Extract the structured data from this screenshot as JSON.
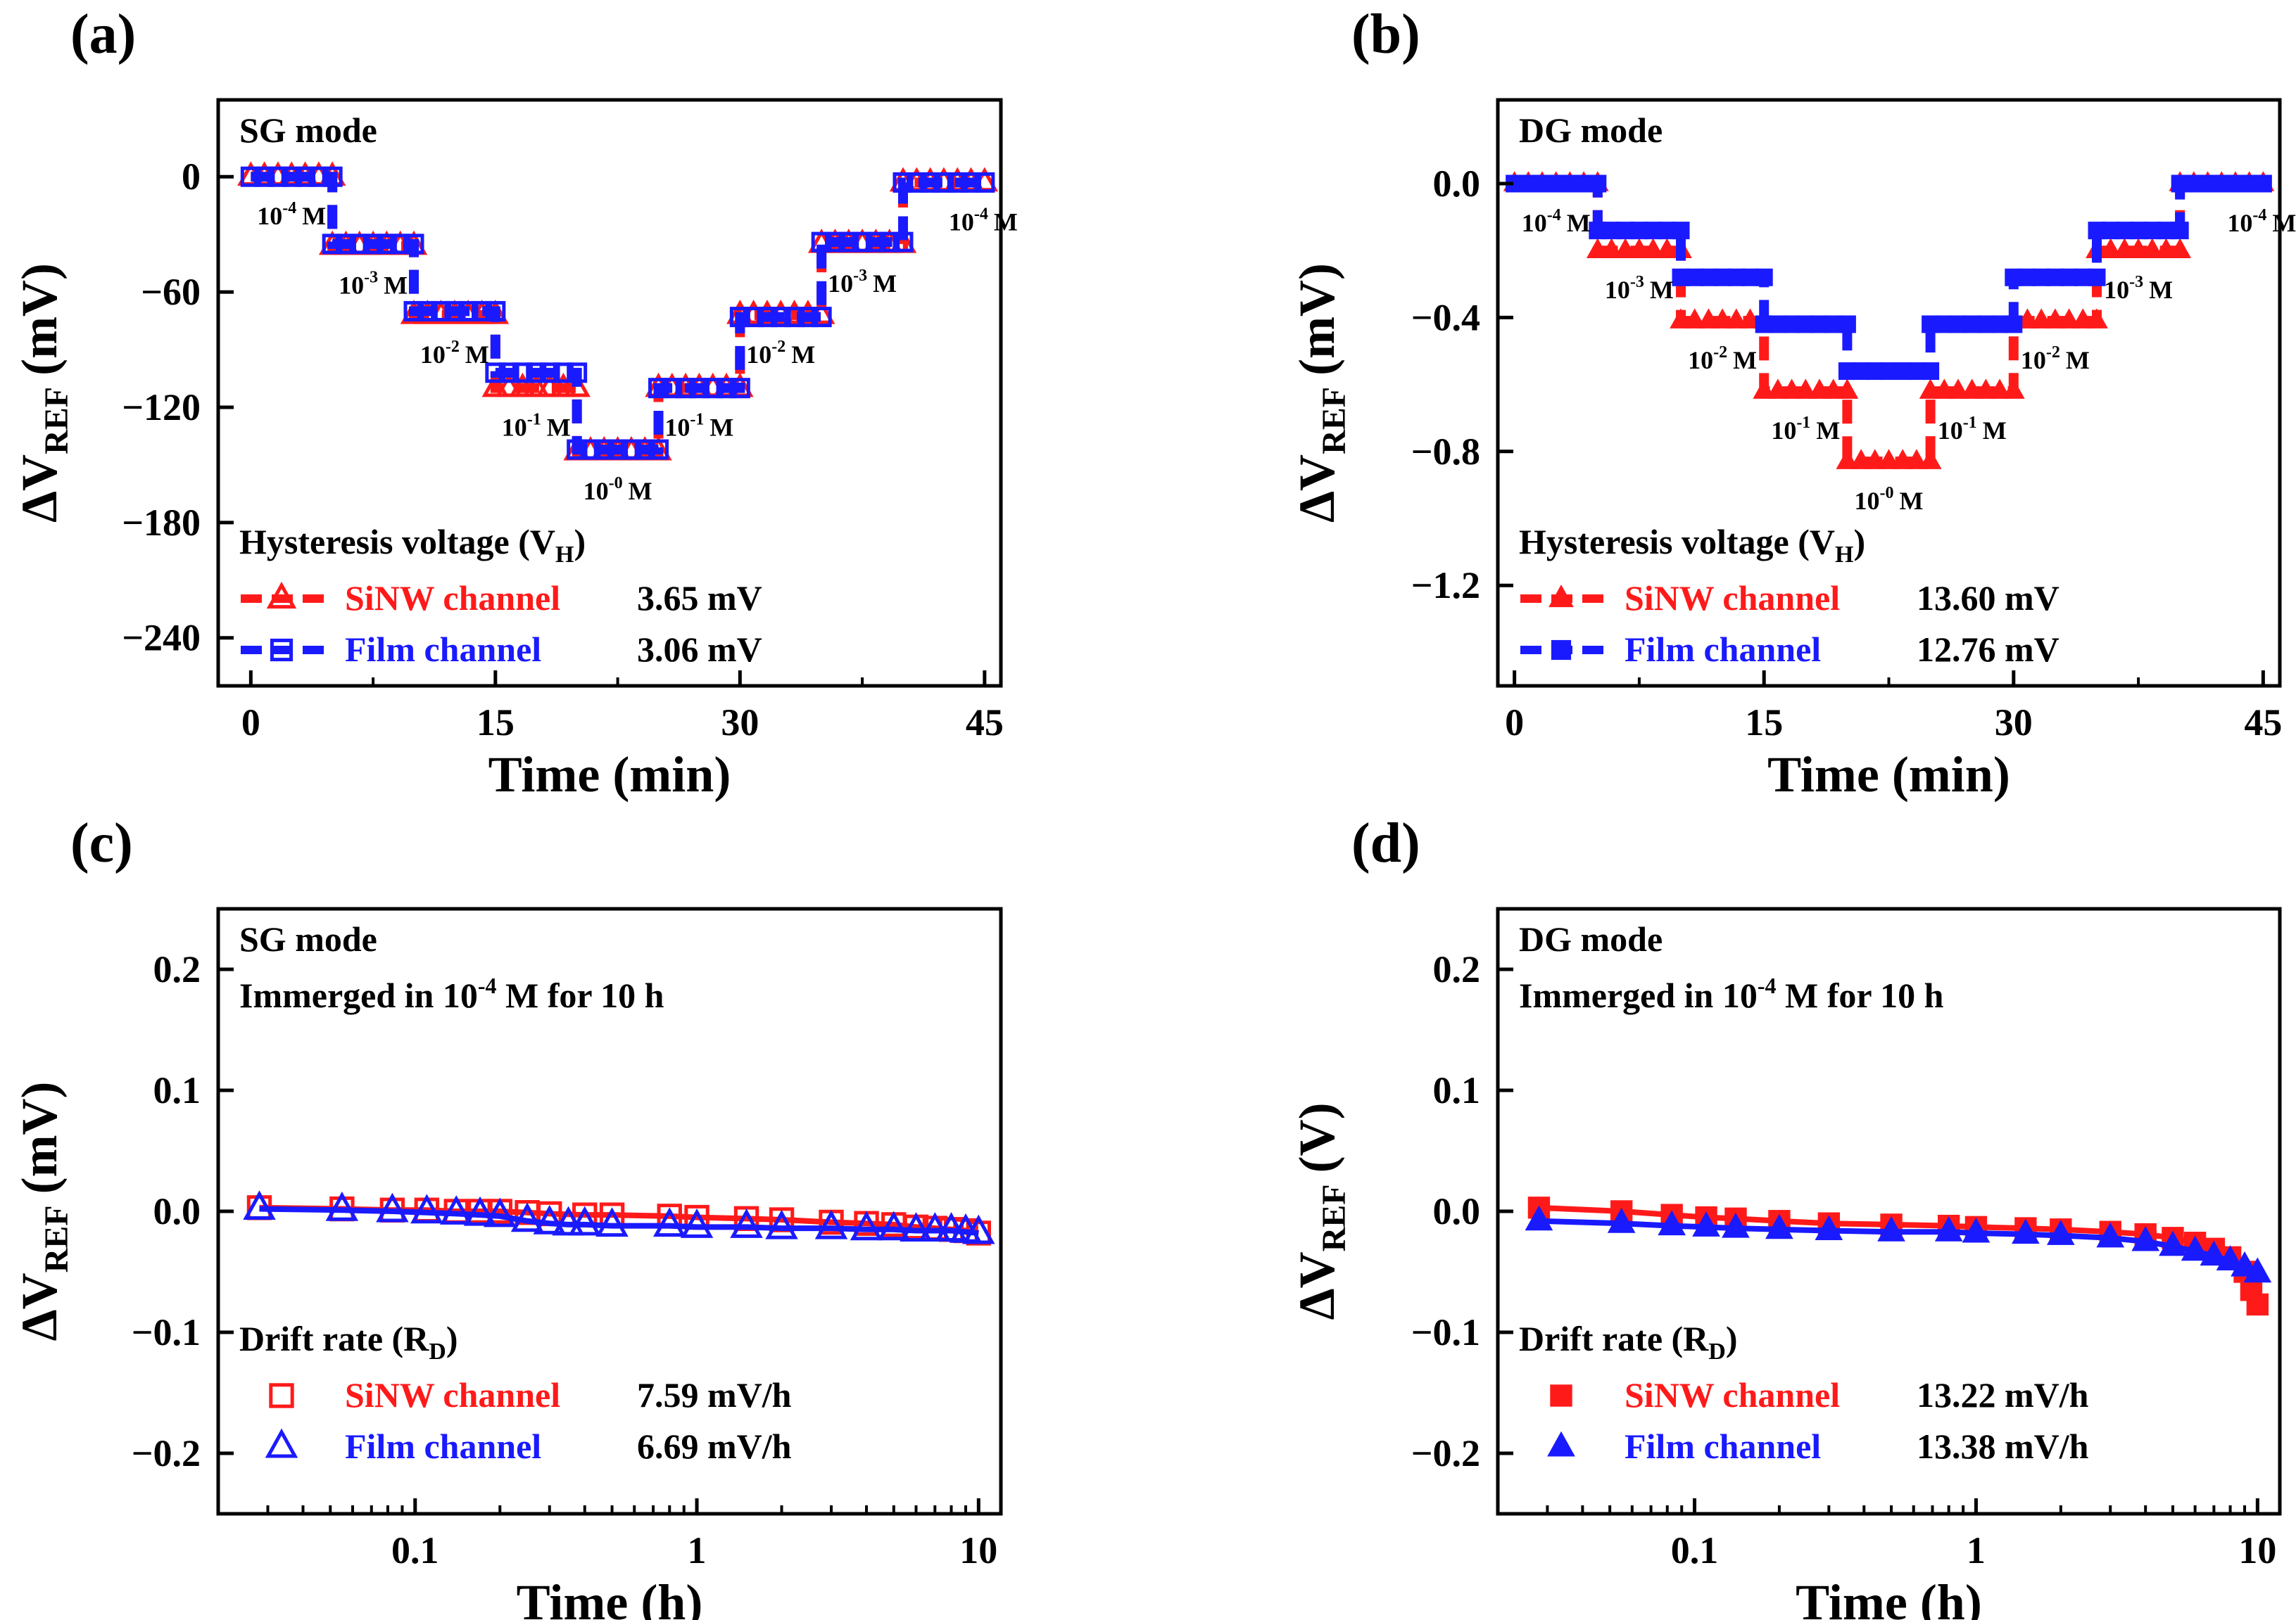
{
  "colors": {
    "red": "#ff1a1a",
    "blue": "#1a1aff",
    "axis": "#000000"
  },
  "panels": [
    {
      "letter": "(a)",
      "mode_label": "SG mode",
      "info_text": "",
      "legend_title": "Hysteresis voltage (V",
      "legend_title_sub": "H",
      "legend": [
        {
          "name": "SiNW channel",
          "value": "3.65 mV",
          "marker": "tri-open",
          "color": "red",
          "line": true
        },
        {
          "name": "Film channel",
          "value": "3.06 mV",
          "marker": "sq-open",
          "color": "blue",
          "line": true
        }
      ],
      "ylabel_unit": "(mV)",
      "xlabel": "Time (min)",
      "xticks": [
        "0",
        "15",
        "30",
        "45"
      ],
      "yticks": [
        "0",
        "−60",
        "−120",
        "−180",
        "−240"
      ],
      "conc_labels": [
        {
          "base": "10",
          "exp": "-4",
          "unit": "M"
        },
        {
          "base": "10",
          "exp": "-3",
          "unit": "M"
        },
        {
          "base": "10",
          "exp": "-2",
          "unit": "M"
        },
        {
          "base": "10",
          "exp": "-1",
          "unit": "M"
        },
        {
          "base": "10",
          "exp": "-0",
          "unit": "M"
        },
        {
          "base": "10",
          "exp": "-1",
          "unit": "M"
        },
        {
          "base": "10",
          "exp": "-2",
          "unit": "M"
        },
        {
          "base": "10",
          "exp": "-3",
          "unit": "M"
        },
        {
          "base": "10",
          "exp": "-4",
          "unit": "M"
        }
      ]
    },
    {
      "letter": "(b)",
      "mode_label": "DG mode",
      "info_text": "",
      "legend_title": "Hysteresis voltage (V",
      "legend_title_sub": "H",
      "legend": [
        {
          "name": "SiNW channel",
          "value": "13.60 mV",
          "marker": "tri-fill",
          "color": "red",
          "line": true
        },
        {
          "name": "Film channel",
          "value": "12.76 mV",
          "marker": "sq-fill",
          "color": "blue",
          "line": true
        }
      ],
      "ylabel_unit": "(mV)",
      "xlabel": "Time (min)",
      "xticks": [
        "0",
        "15",
        "30",
        "45"
      ],
      "yticks": [
        "0.0",
        "−0.4",
        "−0.8",
        "−1.2"
      ],
      "conc_labels": [
        {
          "base": "10",
          "exp": "-4",
          "unit": "M"
        },
        {
          "base": "10",
          "exp": "-3",
          "unit": "M"
        },
        {
          "base": "10",
          "exp": "-2",
          "unit": "M"
        },
        {
          "base": "10",
          "exp": "-1",
          "unit": "M"
        },
        {
          "base": "10",
          "exp": "-0",
          "unit": "M"
        },
        {
          "base": "10",
          "exp": "-1",
          "unit": "M"
        },
        {
          "base": "10",
          "exp": "-2",
          "unit": "M"
        },
        {
          "base": "10",
          "exp": "-3",
          "unit": "M"
        },
        {
          "base": "10",
          "exp": "-4",
          "unit": "M"
        }
      ]
    },
    {
      "letter": "(c)",
      "mode_label": "SG mode",
      "info_text": "Immerged in 10",
      "info_exp": "-4",
      "info_tail": " M for 10 h",
      "legend_title": "Drift rate (R",
      "legend_title_sub": "D",
      "legend": [
        {
          "name": "SiNW channel",
          "value": "7.59 mV/h",
          "marker": "sq-open",
          "color": "red",
          "line": false
        },
        {
          "name": "Film channel",
          "value": "6.69 mV/h",
          "marker": "tri-open",
          "color": "blue",
          "line": false
        }
      ],
      "ylabel_unit": "(mV)",
      "xlabel": "Time (h)",
      "xticks": [
        "0.1",
        "1",
        "10"
      ],
      "yticks": [
        "0.2",
        "0.1",
        "0.0",
        "−0.1",
        "−0.2"
      ],
      "conc_labels": []
    },
    {
      "letter": "(d)",
      "mode_label": "DG mode",
      "info_text": "Immerged in 10",
      "info_exp": "-4",
      "info_tail": " M for 10 h",
      "legend_title": "Drift rate (R",
      "legend_title_sub": "D",
      "legend": [
        {
          "name": "SiNW channel",
          "value": "13.22 mV/h",
          "marker": "sq-fill",
          "color": "red",
          "line": false
        },
        {
          "name": "Film channel",
          "value": "13.38 mV/h",
          "marker": "tri-fill",
          "color": "blue",
          "line": false
        }
      ],
      "ylabel_unit": "(V)",
      "xlabel": "Time (h)",
      "xticks": [
        "0.1",
        "1",
        "10"
      ],
      "yticks": [
        "0.2",
        "0.1",
        "0.0",
        "−0.1",
        "−0.2"
      ],
      "conc_labels": []
    }
  ],
  "ylabel_base": "ΔV",
  "ylabel_sub": "REF",
  "chart_data": [
    {
      "panel": "(a)",
      "type": "line",
      "x_unit": "min",
      "xlim": [
        -2,
        46
      ],
      "ylim": [
        -265,
        40
      ],
      "series": [
        {
          "name": "SiNW channel",
          "marker": "open-triangle",
          "color": "red",
          "segments": [
            {
              "t": [
                0,
                5
              ],
              "y": 0
            },
            {
              "t": [
                5,
                10
              ],
              "y": -36
            },
            {
              "t": [
                10,
                15
              ],
              "y": -72
            },
            {
              "t": [
                15,
                20
              ],
              "y": -110
            },
            {
              "t": [
                20,
                25
              ],
              "y": -143
            },
            {
              "t": [
                25,
                30
              ],
              "y": -110
            },
            {
              "t": [
                30,
                35
              ],
              "y": -72
            },
            {
              "t": [
                35,
                40
              ],
              "y": -35
            },
            {
              "t": [
                40,
                45
              ],
              "y": -3
            }
          ]
        },
        {
          "name": "Film channel",
          "marker": "open-square",
          "color": "blue",
          "segments": [
            {
              "t": [
                0,
                5
              ],
              "y": 0
            },
            {
              "t": [
                5,
                10
              ],
              "y": -35
            },
            {
              "t": [
                10,
                15
              ],
              "y": -70
            },
            {
              "t": [
                15,
                20
              ],
              "y": -102
            },
            {
              "t": [
                20,
                25
              ],
              "y": -142
            },
            {
              "t": [
                25,
                30
              ],
              "y": -110
            },
            {
              "t": [
                30,
                35
              ],
              "y": -73
            },
            {
              "t": [
                35,
                40
              ],
              "y": -34
            },
            {
              "t": [
                40,
                45
              ],
              "y": -3
            }
          ]
        }
      ]
    },
    {
      "panel": "(b)",
      "type": "line",
      "x_unit": "min",
      "xlim": [
        -1,
        46
      ],
      "ylim": [
        -1.5,
        0.25
      ],
      "series": [
        {
          "name": "SiNW channel",
          "marker": "filled-triangle",
          "color": "red",
          "segments": [
            {
              "t": [
                0,
                5
              ],
              "y": 0.0
            },
            {
              "t": [
                5,
                10
              ],
              "y": -0.2
            },
            {
              "t": [
                10,
                15
              ],
              "y": -0.41
            },
            {
              "t": [
                15,
                20
              ],
              "y": -0.62
            },
            {
              "t": [
                20,
                25
              ],
              "y": -0.83
            },
            {
              "t": [
                25,
                30
              ],
              "y": -0.62
            },
            {
              "t": [
                30,
                35
              ],
              "y": -0.41
            },
            {
              "t": [
                35,
                40
              ],
              "y": -0.2
            },
            {
              "t": [
                40,
                45
              ],
              "y": 0.0
            }
          ]
        },
        {
          "name": "Film channel",
          "marker": "filled-square",
          "color": "blue",
          "segments": [
            {
              "t": [
                0,
                5
              ],
              "y": 0.0
            },
            {
              "t": [
                5,
                10
              ],
              "y": -0.14
            },
            {
              "t": [
                10,
                15
              ],
              "y": -0.28
            },
            {
              "t": [
                15,
                20
              ],
              "y": -0.42
            },
            {
              "t": [
                20,
                25
              ],
              "y": -0.56
            },
            {
              "t": [
                25,
                30
              ],
              "y": -0.42
            },
            {
              "t": [
                30,
                35
              ],
              "y": -0.28
            },
            {
              "t": [
                35,
                40
              ],
              "y": -0.14
            },
            {
              "t": [
                40,
                45
              ],
              "y": 0.0
            }
          ]
        }
      ]
    },
    {
      "panel": "(c)",
      "type": "scatter",
      "xscale": "log",
      "x_unit": "h",
      "xlim": [
        0.02,
        12
      ],
      "ylim": [
        -0.25,
        0.25
      ],
      "series": [
        {
          "name": "SiNW channel",
          "marker": "open-square",
          "color": "red",
          "x": [
            0.028,
            0.055,
            0.083,
            0.11,
            0.14,
            0.17,
            0.2,
            0.25,
            0.3,
            0.4,
            0.5,
            0.8,
            1,
            1.5,
            2,
            3,
            4,
            5,
            6,
            7,
            8,
            9,
            10
          ],
          "y": [
            0.003,
            0.002,
            0.001,
            0.001,
            0.0,
            0.0,
            0.0,
            -0.001,
            -0.002,
            -0.003,
            -0.003,
            -0.004,
            -0.005,
            -0.006,
            -0.007,
            -0.009,
            -0.01,
            -0.011,
            -0.013,
            -0.014,
            -0.015,
            -0.016,
            -0.018
          ]
        },
        {
          "name": "Film channel",
          "marker": "open-triangle",
          "color": "blue",
          "x": [
            0.028,
            0.055,
            0.083,
            0.11,
            0.14,
            0.17,
            0.2,
            0.25,
            0.3,
            0.35,
            0.4,
            0.5,
            0.8,
            1,
            1.5,
            2,
            3,
            4,
            5,
            6,
            7,
            8,
            9,
            10
          ],
          "y": [
            0.002,
            0.001,
            0.0,
            -0.001,
            -0.002,
            -0.003,
            -0.004,
            -0.008,
            -0.01,
            -0.011,
            -0.011,
            -0.012,
            -0.012,
            -0.013,
            -0.013,
            -0.014,
            -0.014,
            -0.015,
            -0.015,
            -0.016,
            -0.016,
            -0.016,
            -0.017,
            -0.018
          ]
        }
      ]
    },
    {
      "panel": "(d)",
      "type": "scatter",
      "xscale": "log",
      "x_unit": "h",
      "xlim": [
        0.02,
        12
      ],
      "ylim": [
        -0.25,
        0.25
      ],
      "series": [
        {
          "name": "SiNW channel",
          "marker": "filled-square",
          "color": "red",
          "x": [
            0.028,
            0.055,
            0.083,
            0.11,
            0.14,
            0.2,
            0.3,
            0.5,
            0.8,
            1,
            1.5,
            2,
            3,
            4,
            5,
            6,
            7,
            8,
            9,
            9.5,
            10
          ],
          "y": [
            0.003,
            0.0,
            -0.003,
            -0.005,
            -0.006,
            -0.008,
            -0.01,
            -0.011,
            -0.012,
            -0.013,
            -0.014,
            -0.015,
            -0.017,
            -0.019,
            -0.022,
            -0.026,
            -0.031,
            -0.038,
            -0.05,
            -0.065,
            -0.077
          ]
        },
        {
          "name": "Film channel",
          "marker": "filled-triangle",
          "color": "blue",
          "x": [
            0.028,
            0.055,
            0.083,
            0.11,
            0.14,
            0.2,
            0.3,
            0.5,
            0.8,
            1,
            1.5,
            2,
            3,
            4,
            5,
            6,
            7,
            8,
            9,
            10
          ],
          "y": [
            -0.008,
            -0.01,
            -0.012,
            -0.013,
            -0.014,
            -0.015,
            -0.016,
            -0.017,
            -0.017,
            -0.018,
            -0.019,
            -0.02,
            -0.022,
            -0.025,
            -0.029,
            -0.033,
            -0.037,
            -0.041,
            -0.046,
            -0.051
          ]
        }
      ]
    }
  ]
}
